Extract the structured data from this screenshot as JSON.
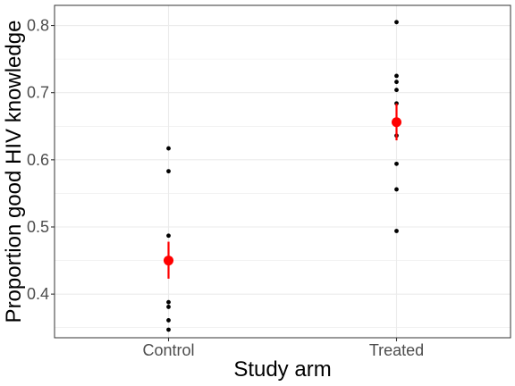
{
  "chart_data": {
    "type": "scatter",
    "xlabel": "Study arm",
    "ylabel": "Proportion good HIV knowledge",
    "categories": [
      "Control",
      "Treated"
    ],
    "ylim": [
      0.335,
      0.83
    ],
    "yticks": [
      0.4,
      0.5,
      0.6,
      0.7,
      0.8
    ],
    "ytick_labels": [
      "0.4",
      "0.5",
      "0.6",
      "0.7",
      "0.8"
    ],
    "grid": true,
    "points": [
      {
        "category": "Control",
        "values": [
          0.617,
          0.583,
          0.487,
          0.388,
          0.381,
          0.361,
          0.347
        ]
      },
      {
        "category": "Treated",
        "values": [
          0.805,
          0.725,
          0.716,
          0.704,
          0.684,
          0.636,
          0.594,
          0.556,
          0.494
        ]
      }
    ],
    "summary": [
      {
        "category": "Control",
        "mean": 0.45,
        "lower": 0.423,
        "upper": 0.478
      },
      {
        "category": "Treated",
        "mean": 0.656,
        "lower": 0.629,
        "upper": 0.684
      }
    ],
    "colors": {
      "points": "#000000",
      "summary": "#ff0000",
      "grid": "#ebebeb",
      "panel_border": "#333333"
    }
  }
}
